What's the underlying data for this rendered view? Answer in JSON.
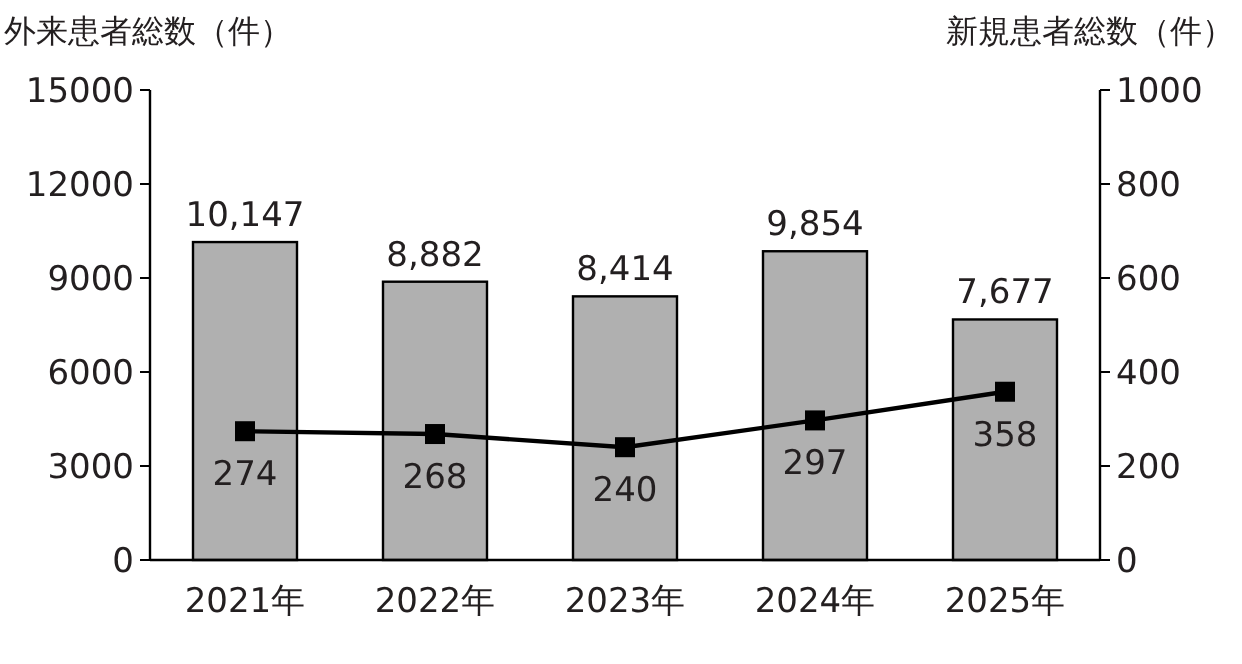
{
  "chart_data": {
    "type": "bar",
    "ylabel": "外来患者総数（件）",
    "y2label": "新規患者総数（件）",
    "categories": [
      "2021年",
      "2022年",
      "2023年",
      "2024年",
      "2025年"
    ],
    "series": [
      {
        "color": "#b0b0b0",
        "values": [
          10147,
          8882,
          8414,
          9854,
          7677
        ],
        "value_labels": [
          "10,147",
          "8,882",
          "8,414",
          "9,854",
          "7,677"
        ]
      },
      {
        "type": "line",
        "axis": "y2",
        "color": "#000000",
        "marker": "square",
        "line_style": "solid",
        "values": [
          274,
          268,
          240,
          297,
          358
        ],
        "value_labels": [
          "274",
          "268",
          "240",
          "297",
          "358"
        ]
      }
    ],
    "ylim": [
      0,
      15000
    ],
    "yticks": [
      0,
      3000,
      6000,
      9000,
      12000,
      15000
    ],
    "y2lim": [
      0,
      1000
    ],
    "y2ticks": [
      0,
      200,
      400,
      600,
      800,
      1000
    ],
    "grid": false
  }
}
